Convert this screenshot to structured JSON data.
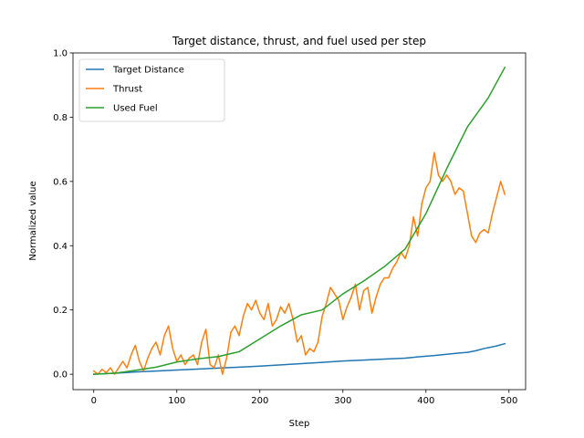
{
  "chart_data": {
    "type": "line",
    "title": "Target distance, thrust, and fuel used per step",
    "xlabel": "Step",
    "ylabel": "Normalized value",
    "xlim": [
      -25,
      520
    ],
    "ylim": [
      -0.048,
      1.0
    ],
    "x_ticks": [
      0,
      100,
      200,
      300,
      400,
      500
    ],
    "y_ticks": [
      0.0,
      0.2,
      0.4,
      0.6,
      0.8,
      1.0
    ],
    "x_tick_labels": [
      "0",
      "100",
      "200",
      "300",
      "400",
      "500"
    ],
    "y_tick_labels": [
      "0.0",
      "0.2",
      "0.4",
      "0.6",
      "0.8",
      "1.0"
    ],
    "grid": false,
    "legend_position": "upper-left",
    "series": [
      {
        "name": "Target Distance",
        "color": "#1f77b4",
        "x": [
          0,
          25,
          50,
          75,
          100,
          125,
          150,
          175,
          200,
          225,
          250,
          275,
          300,
          325,
          350,
          375,
          390,
          400,
          410,
          425,
          440,
          450,
          460,
          470,
          480,
          485,
          495
        ],
        "y": [
          0.0,
          0.003,
          0.007,
          0.01,
          0.013,
          0.016,
          0.019,
          0.022,
          0.025,
          0.029,
          0.033,
          0.037,
          0.041,
          0.044,
          0.047,
          0.05,
          0.054,
          0.056,
          0.058,
          0.062,
          0.066,
          0.068,
          0.073,
          0.08,
          0.085,
          0.088,
          0.095
        ]
      },
      {
        "name": "Thrust",
        "color": "#ff7f0e",
        "x": [
          0,
          5,
          10,
          15,
          20,
          25,
          30,
          35,
          40,
          45,
          50,
          55,
          60,
          65,
          70,
          75,
          80,
          85,
          90,
          95,
          100,
          105,
          110,
          115,
          120,
          125,
          130,
          135,
          140,
          145,
          150,
          155,
          160,
          165,
          170,
          175,
          180,
          185,
          190,
          195,
          200,
          205,
          210,
          215,
          220,
          225,
          230,
          235,
          240,
          245,
          250,
          255,
          260,
          265,
          270,
          275,
          280,
          285,
          290,
          295,
          300,
          305,
          310,
          315,
          320,
          325,
          330,
          335,
          340,
          345,
          350,
          355,
          360,
          365,
          370,
          375,
          380,
          385,
          390,
          395,
          400,
          405,
          410,
          415,
          420,
          425,
          430,
          435,
          440,
          445,
          450,
          455,
          460,
          465,
          470,
          475,
          480,
          485,
          490,
          495
        ],
        "y": [
          0.01,
          0.0,
          0.015,
          0.005,
          0.02,
          0.0,
          0.02,
          0.04,
          0.02,
          0.06,
          0.09,
          0.04,
          0.01,
          0.05,
          0.08,
          0.1,
          0.06,
          0.12,
          0.15,
          0.08,
          0.04,
          0.06,
          0.03,
          0.05,
          0.06,
          0.03,
          0.1,
          0.14,
          0.03,
          0.02,
          0.06,
          0.0,
          0.05,
          0.13,
          0.15,
          0.12,
          0.18,
          0.22,
          0.2,
          0.23,
          0.19,
          0.17,
          0.22,
          0.15,
          0.17,
          0.21,
          0.19,
          0.22,
          0.17,
          0.1,
          0.12,
          0.06,
          0.08,
          0.07,
          0.1,
          0.18,
          0.22,
          0.27,
          0.25,
          0.23,
          0.17,
          0.21,
          0.24,
          0.28,
          0.2,
          0.26,
          0.27,
          0.19,
          0.24,
          0.28,
          0.3,
          0.3,
          0.33,
          0.35,
          0.38,
          0.36,
          0.4,
          0.49,
          0.43,
          0.53,
          0.58,
          0.6,
          0.69,
          0.62,
          0.6,
          0.62,
          0.6,
          0.56,
          0.58,
          0.57,
          0.5,
          0.43,
          0.41,
          0.44,
          0.45,
          0.44,
          0.5,
          0.55,
          0.6,
          0.56
        ]
      },
      {
        "name": "Used Fuel",
        "color": "#2ca02c",
        "x": [
          0,
          25,
          50,
          75,
          100,
          125,
          150,
          175,
          200,
          225,
          250,
          275,
          300,
          325,
          350,
          375,
          400,
          425,
          450,
          475,
          495
        ],
        "y": [
          0.0,
          0.003,
          0.012,
          0.022,
          0.038,
          0.048,
          0.055,
          0.07,
          0.11,
          0.15,
          0.185,
          0.2,
          0.25,
          0.29,
          0.335,
          0.39,
          0.5,
          0.64,
          0.77,
          0.86,
          0.955
        ]
      }
    ]
  }
}
